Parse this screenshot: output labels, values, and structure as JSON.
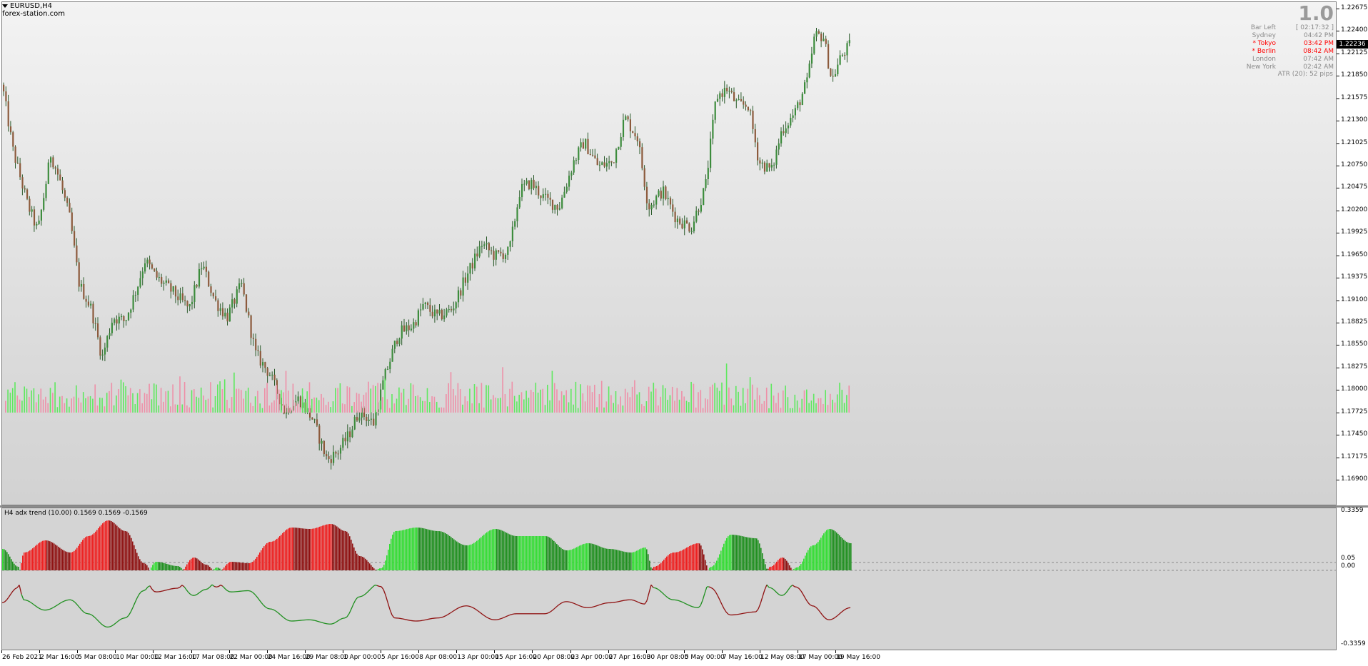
{
  "window": {
    "symbol_title": "EURUSD,H4",
    "watermark": "forex-station.com"
  },
  "overlay": {
    "big_number": "1.0",
    "sessions": [
      {
        "name": "Bar Left",
        "value": "[ 02:17:32 ]",
        "color": "#8a8a8a"
      },
      {
        "name": "Sydney",
        "value": "04:42 PM",
        "color": "#8a8a8a"
      },
      {
        "name": "* Tokyo",
        "value": "03:42 PM",
        "color": "#ff0000"
      },
      {
        "name": "* Berlin",
        "value": "08:42 AM",
        "color": "#ff0000"
      },
      {
        "name": "London",
        "value": "07:42 AM",
        "color": "#8a8a8a"
      },
      {
        "name": "New York",
        "value": "02:42 AM",
        "color": "#8a8a8a"
      }
    ],
    "atr": "ATR (20): 52 pips"
  },
  "price_axis": {
    "labels": [
      "1.22675",
      "1.22400",
      "1.22125",
      "1.21850",
      "1.21575",
      "1.21300",
      "1.21025",
      "1.20750",
      "1.20475",
      "1.20200",
      "1.19925",
      "1.19650",
      "1.19375",
      "1.19100",
      "1.18825",
      "1.18550",
      "1.18275",
      "1.18000",
      "1.17725",
      "1.17450",
      "1.17175",
      "1.16900"
    ],
    "current_price": "1.22236"
  },
  "indicator": {
    "title": "H4 adx trend (10.00) 0.1569 0.1569 -0.1569",
    "axis_labels": {
      "top": "0.3359",
      "level": "0.05",
      "zero": "0.00",
      "bottom": "-0.3359"
    }
  },
  "time_axis": {
    "labels": [
      "26 Feb 2021",
      "2 Mar 16:00",
      "5 Mar 08:00",
      "10 Mar 00:00",
      "12 Mar 16:00",
      "17 Mar 08:00",
      "22 Mar 00:00",
      "24 Mar 16:00",
      "29 Mar 08:00",
      "1 Apr 00:00",
      "5 Apr 16:00",
      "8 Apr 08:00",
      "13 Apr 00:00",
      "15 Apr 16:00",
      "20 Apr 08:00",
      "23 Apr 00:00",
      "27 Apr 16:00",
      "30 Apr 08:00",
      "5 May 00:00",
      "7 May 16:00",
      "12 May 08:00",
      "17 May 00:00",
      "19 May 16:00"
    ]
  },
  "colors": {
    "bull_candle": "#3c8c3c",
    "bear_candle": "#8c5a3c",
    "volume_up": "#5fe85f",
    "volume_down": "#ee90a8",
    "hist_green_bright": "#33dd33",
    "hist_green_dark": "#1e8f1e",
    "hist_red_bright": "#ee2020",
    "hist_red_dark": "#8f1111"
  },
  "chart_data": {
    "type": "candlestick",
    "symbol": "EURUSD",
    "timeframe": "H4",
    "ylim": [
      1.169,
      1.22675
    ],
    "current_price": 1.22236,
    "close_path": [
      {
        "x": 0,
        "y": 1.2175
      },
      {
        "x": 15,
        "y": 1.2095
      },
      {
        "x": 35,
        "y": 1.203
      },
      {
        "x": 50,
        "y": 1.1995
      },
      {
        "x": 68,
        "y": 1.209
      },
      {
        "x": 80,
        "y": 1.206
      },
      {
        "x": 95,
        "y": 1.201
      },
      {
        "x": 108,
        "y": 1.193
      },
      {
        "x": 125,
        "y": 1.19
      },
      {
        "x": 140,
        "y": 1.184
      },
      {
        "x": 155,
        "y": 1.189
      },
      {
        "x": 172,
        "y": 1.1885
      },
      {
        "x": 190,
        "y": 1.193
      },
      {
        "x": 200,
        "y": 1.196
      },
      {
        "x": 215,
        "y": 1.194
      },
      {
        "x": 240,
        "y": 1.192
      },
      {
        "x": 262,
        "y": 1.19
      },
      {
        "x": 280,
        "y": 1.1955
      },
      {
        "x": 298,
        "y": 1.191
      },
      {
        "x": 315,
        "y": 1.189
      },
      {
        "x": 335,
        "y": 1.193
      },
      {
        "x": 355,
        "y": 1.1845
      },
      {
        "x": 375,
        "y": 1.182
      },
      {
        "x": 395,
        "y": 1.1775
      },
      {
        "x": 415,
        "y": 1.179
      },
      {
        "x": 435,
        "y": 1.1765
      },
      {
        "x": 455,
        "y": 1.1715
      },
      {
        "x": 470,
        "y": 1.1725
      },
      {
        "x": 485,
        "y": 1.1745
      },
      {
        "x": 500,
        "y": 1.1775
      },
      {
        "x": 520,
        "y": 1.176
      },
      {
        "x": 535,
        "y": 1.1815
      },
      {
        "x": 555,
        "y": 1.187
      },
      {
        "x": 575,
        "y": 1.188
      },
      {
        "x": 590,
        "y": 1.1905
      },
      {
        "x": 610,
        "y": 1.189
      },
      {
        "x": 630,
        "y": 1.19
      },
      {
        "x": 650,
        "y": 1.194
      },
      {
        "x": 672,
        "y": 1.198
      },
      {
        "x": 690,
        "y": 1.1965
      },
      {
        "x": 710,
        "y": 1.197
      },
      {
        "x": 725,
        "y": 1.2045
      },
      {
        "x": 740,
        "y": 1.2055
      },
      {
        "x": 760,
        "y": 1.2035
      },
      {
        "x": 780,
        "y": 1.2025
      },
      {
        "x": 800,
        "y": 1.208
      },
      {
        "x": 815,
        "y": 1.2105
      },
      {
        "x": 835,
        "y": 1.2075
      },
      {
        "x": 855,
        "y": 1.208
      },
      {
        "x": 872,
        "y": 1.2135
      },
      {
        "x": 890,
        "y": 1.211
      },
      {
        "x": 905,
        "y": 1.2025
      },
      {
        "x": 925,
        "y": 1.2045
      },
      {
        "x": 945,
        "y": 1.201
      },
      {
        "x": 965,
        "y": 1.2
      },
      {
        "x": 985,
        "y": 1.205
      },
      {
        "x": 1000,
        "y": 1.216
      },
      {
        "x": 1015,
        "y": 1.217
      },
      {
        "x": 1030,
        "y": 1.215
      },
      {
        "x": 1045,
        "y": 1.215
      },
      {
        "x": 1060,
        "y": 1.208
      },
      {
        "x": 1078,
        "y": 1.207
      },
      {
        "x": 1092,
        "y": 1.212
      },
      {
        "x": 1110,
        "y": 1.214
      },
      {
        "x": 1128,
        "y": 1.218
      },
      {
        "x": 1138,
        "y": 1.2235
      },
      {
        "x": 1150,
        "y": 1.2235
      },
      {
        "x": 1162,
        "y": 1.218
      },
      {
        "x": 1175,
        "y": 1.221
      },
      {
        "x": 1188,
        "y": 1.2224
      }
    ]
  }
}
